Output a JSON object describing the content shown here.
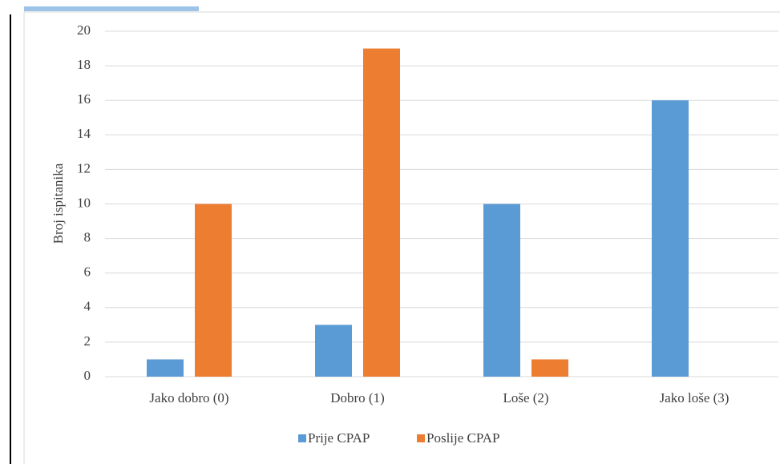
{
  "chart_data": {
    "type": "bar",
    "y_label": "Broj ispitanika",
    "categories": [
      "Jako dobro (0)",
      "Dobro (1)",
      "Loše (2)",
      "Jako loše (3)"
    ],
    "series": [
      {
        "name": "Prije CPAP",
        "color": "#5b9bd5",
        "values": [
          1,
          3,
          10,
          16
        ]
      },
      {
        "name": "Poslije CPAP",
        "color": "#ed7d31",
        "values": [
          10,
          19,
          1,
          0
        ]
      }
    ],
    "ylim": [
      0,
      20
    ],
    "yticks": [
      0,
      2,
      4,
      6,
      8,
      10,
      12,
      14,
      16,
      18,
      20
    ],
    "grid": true,
    "legend": "bottom"
  }
}
